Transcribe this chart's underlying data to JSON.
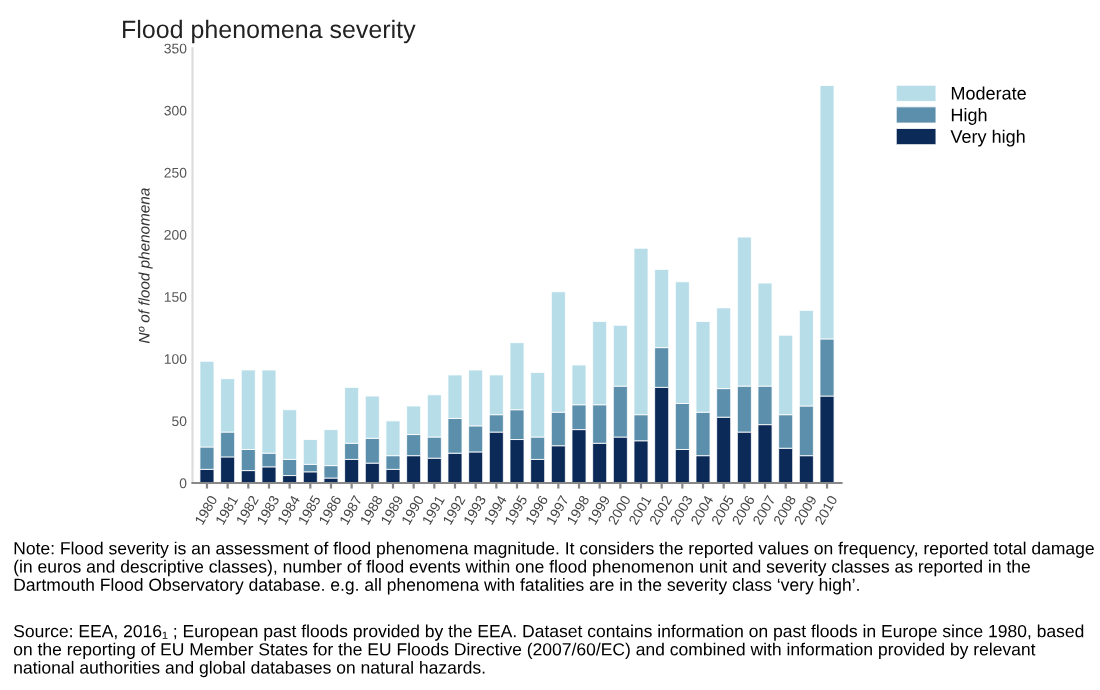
{
  "chart_data": {
    "type": "bar",
    "stacked": true,
    "title": "Flood phenomena severity",
    "ylabel": "Nº of flood phenomena",
    "categories": [
      "1980",
      "1981",
      "1982",
      "1983",
      "1984",
      "1985",
      "1986",
      "1987",
      "1988",
      "1989",
      "1990",
      "1991",
      "1992",
      "1993",
      "1994",
      "1995",
      "1996",
      "1997",
      "1998",
      "1999",
      "2000",
      "2001",
      "2002",
      "2003",
      "2004",
      "2005",
      "2006",
      "2007",
      "2008",
      "2009",
      "2010"
    ],
    "series": [
      {
        "name": "Very high",
        "color": "#0b2a58",
        "values": [
          11,
          21,
          10,
          13,
          6,
          9,
          4,
          19,
          16,
          11,
          22,
          20,
          24,
          25,
          41,
          35,
          19,
          30,
          43,
          32,
          37,
          34,
          77,
          27,
          22,
          53,
          41,
          47,
          28,
          22,
          70
        ]
      },
      {
        "name": "High",
        "color": "#5b8fab",
        "values": [
          18,
          20,
          17,
          11,
          13,
          6,
          10,
          13,
          20,
          11,
          17,
          17,
          28,
          21,
          14,
          24,
          18,
          27,
          20,
          31,
          41,
          21,
          32,
          37,
          35,
          23,
          37,
          31,
          27,
          40,
          46
        ]
      },
      {
        "name": "Moderate",
        "color": "#b7dde9",
        "values": [
          69,
          43,
          64,
          67,
          40,
          20,
          29,
          45,
          34,
          28,
          23,
          34,
          35,
          45,
          32,
          54,
          52,
          97,
          32,
          67,
          49,
          134,
          63,
          98,
          73,
          65,
          120,
          83,
          64,
          77,
          204
        ]
      }
    ],
    "ylim": [
      0,
      350
    ],
    "yticks": [
      0,
      50,
      100,
      150,
      200,
      250,
      300,
      350
    ],
    "grid": false,
    "legend": "top right",
    "annotations": [
      "Note: Flood severity is an assessment of flood phenomena magnitude. It considers the reported values on frequency, reported total damage (in euros and descriptive classes), number of flood events within one flood phenomenon unit and severity classes as reported in the Dartmouth Flood Observatory database. e.g. all phenomena with fatalities are in the severity class ‘very high’.",
      "Source: EEA, 2016₁ ; European past floods provided by the EEA. Dataset contains information on past floods in Europe since 1980, based on the reporting of EU Member States for the EU Floods Directive (2007/60/EC) and combined with information provided by relevant national authorities and global databases on natural hazards."
    ]
  }
}
